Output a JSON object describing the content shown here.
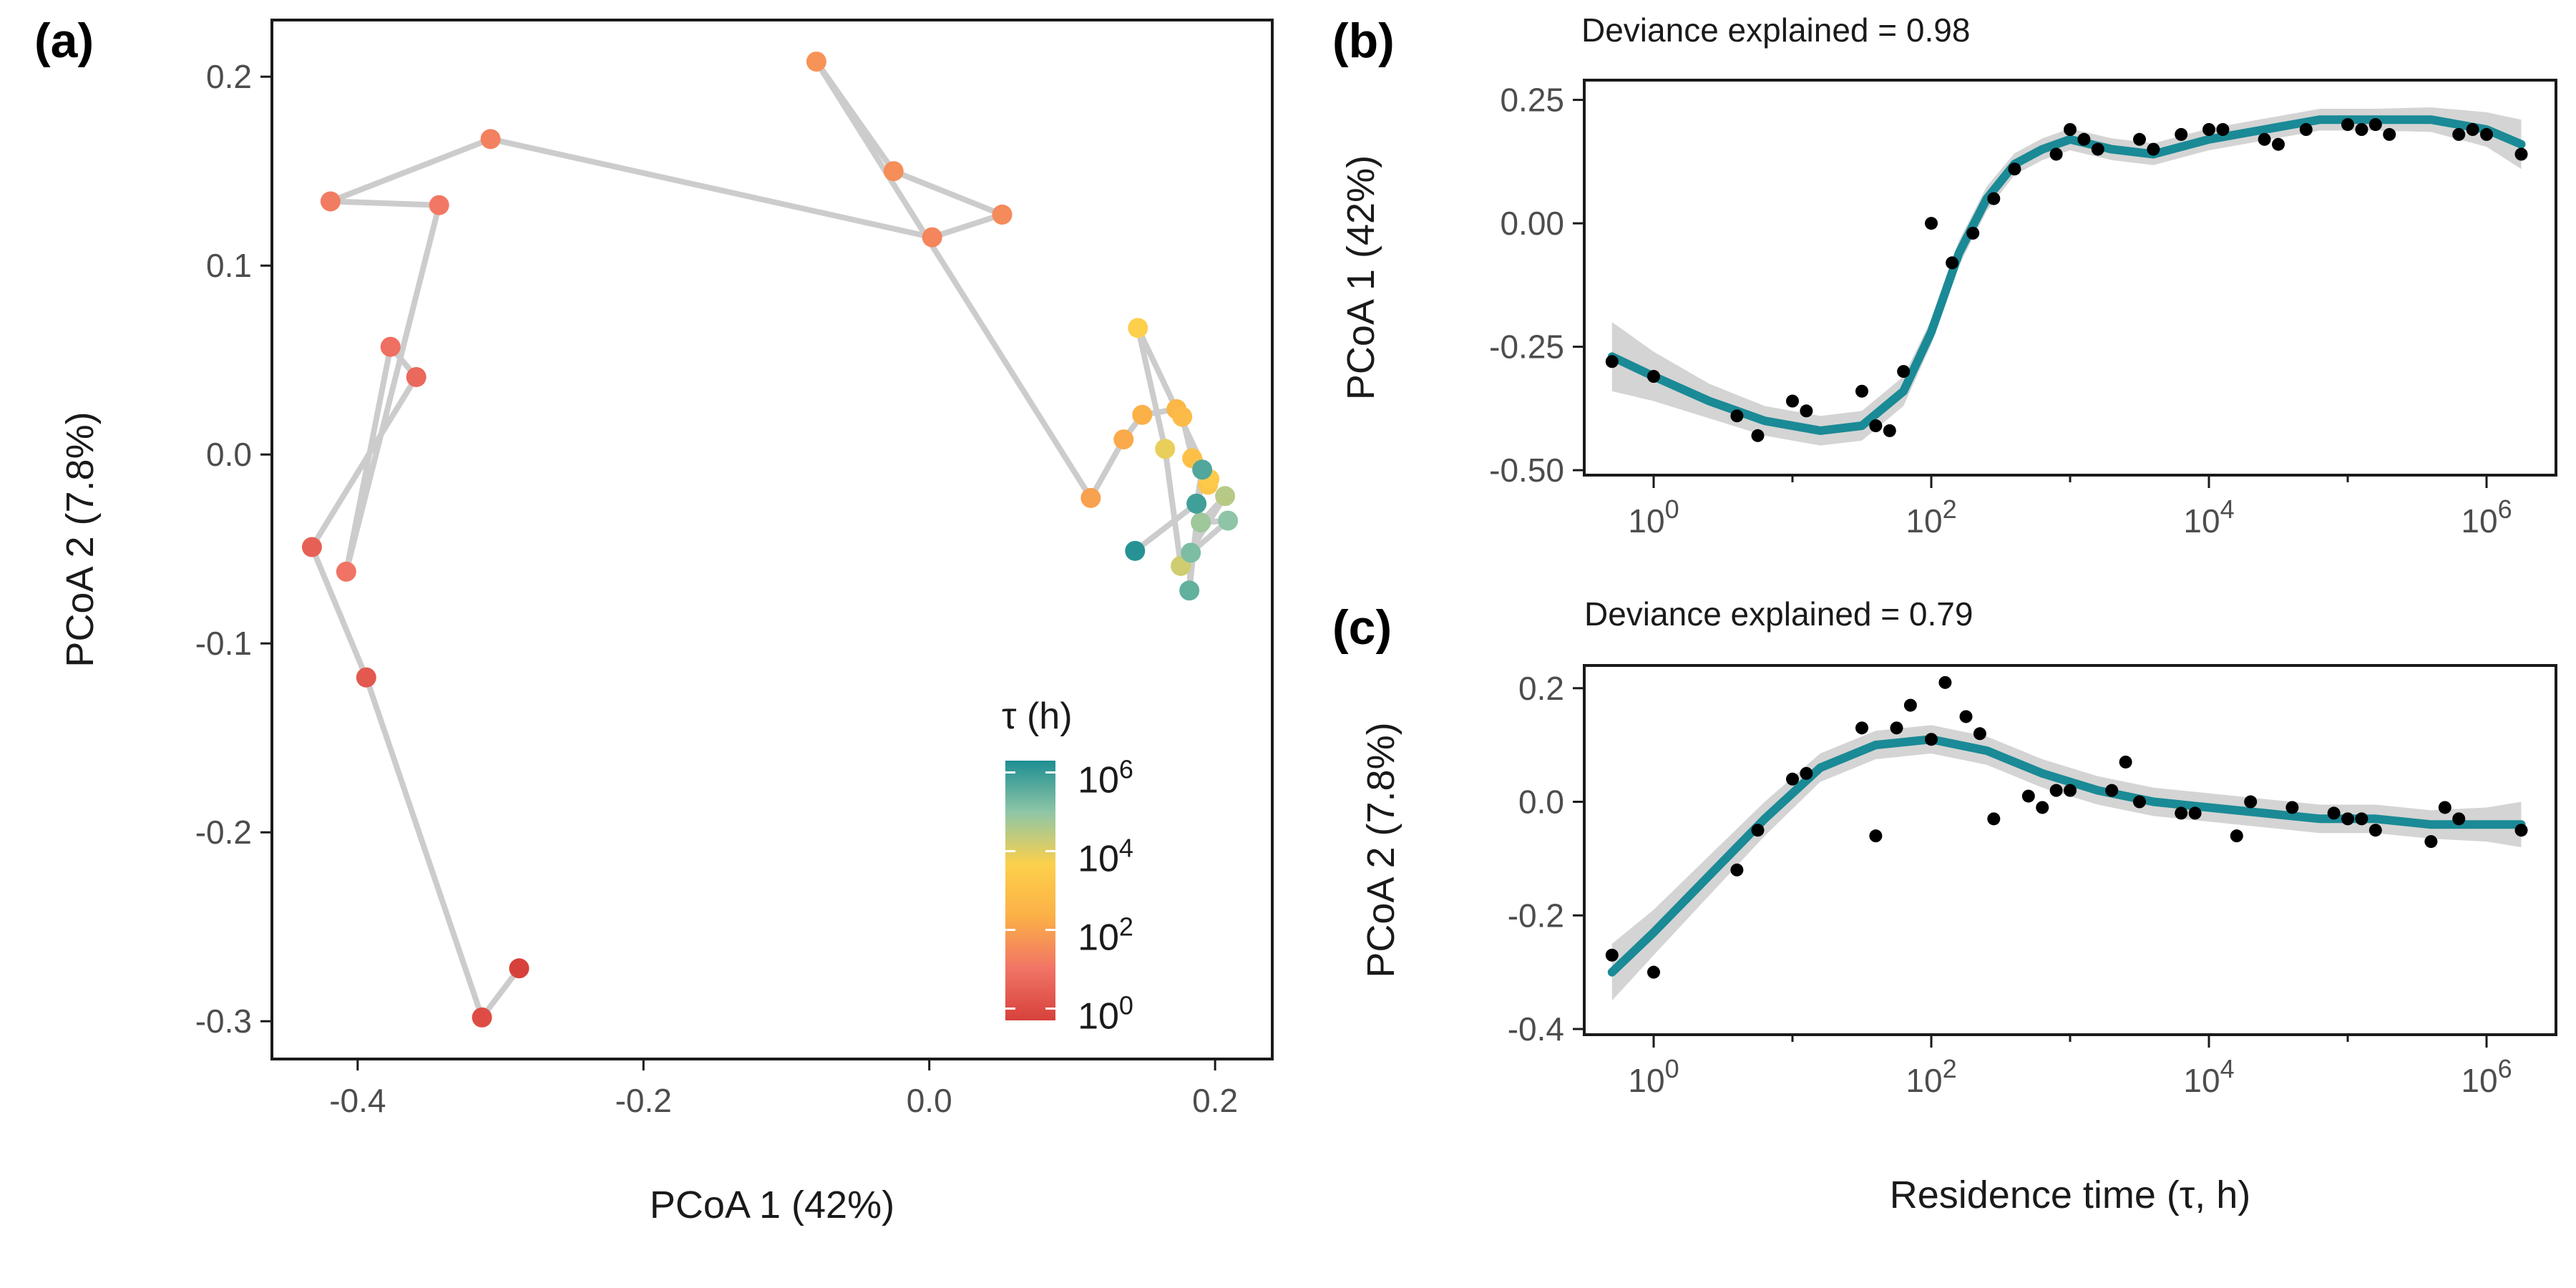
{
  "chart_data": [
    {
      "panel": "(a)",
      "type": "scatter",
      "xlabel": "PCoA 1 (42%)",
      "ylabel": "PCoA 2 (7.8%)",
      "xlim": [
        -0.46,
        0.24
      ],
      "ylim": [
        -0.32,
        0.23
      ],
      "xticks": [
        -0.4,
        -0.2,
        0.0,
        0.2
      ],
      "xtick_labels": [
        "-0.4",
        "-0.2",
        "0.0",
        "0.2"
      ],
      "yticks": [
        -0.3,
        -0.2,
        -0.1,
        0.0,
        0.1,
        0.2
      ],
      "ytick_labels": [
        "-0.3",
        "-0.2",
        "-0.1",
        "0.0",
        "0.1",
        "0.2"
      ],
      "path_color": "#cccccc",
      "legend": {
        "title": "τ (h)",
        "placement": "bottom-right",
        "scale": "log10",
        "range_log10": [
          -0.3,
          6.3
        ],
        "tick_exponents": [
          "0",
          "2",
          "4",
          "6"
        ],
        "tick_base": "10",
        "colors": [
          "#d7413b",
          "#f17466",
          "#fbb047",
          "#fdd04b",
          "#8fc6a6",
          "#1d8e92"
        ]
      },
      "points": [
        {
          "x": -0.287,
          "y": -0.272,
          "tau_log10": -0.3
        },
        {
          "x": -0.313,
          "y": -0.298,
          "tau_log10": 0.0
        },
        {
          "x": -0.394,
          "y": -0.118,
          "tau_log10": 0.3
        },
        {
          "x": -0.432,
          "y": -0.049,
          "tau_log10": 0.5
        },
        {
          "x": -0.359,
          "y": 0.041,
          "tau_log10": 0.7
        },
        {
          "x": -0.377,
          "y": 0.057,
          "tau_log10": 0.9
        },
        {
          "x": -0.408,
          "y": -0.062,
          "tau_log10": 1.0
        },
        {
          "x": -0.343,
          "y": 0.132,
          "tau_log10": 1.1
        },
        {
          "x": -0.419,
          "y": 0.134,
          "tau_log10": 1.2
        },
        {
          "x": -0.307,
          "y": 0.167,
          "tau_log10": 1.3
        },
        {
          "x": 0.002,
          "y": 0.115,
          "tau_log10": 1.4
        },
        {
          "x": 0.051,
          "y": 0.127,
          "tau_log10": 1.5
        },
        {
          "x": -0.025,
          "y": 0.15,
          "tau_log10": 1.6
        },
        {
          "x": -0.079,
          "y": 0.208,
          "tau_log10": 1.7
        },
        {
          "x": 0.113,
          "y": -0.023,
          "tau_log10": 2.0
        },
        {
          "x": 0.136,
          "y": 0.008,
          "tau_log10": 2.2
        },
        {
          "x": 0.149,
          "y": 0.021,
          "tau_log10": 2.4
        },
        {
          "x": 0.173,
          "y": 0.024,
          "tau_log10": 2.6
        },
        {
          "x": 0.177,
          "y": 0.02,
          "tau_log10": 2.8
        },
        {
          "x": 0.184,
          "y": -0.002,
          "tau_log10": 3.0
        },
        {
          "x": 0.195,
          "y": -0.016,
          "tau_log10": 3.2
        },
        {
          "x": 0.196,
          "y": -0.013,
          "tau_log10": 3.4
        },
        {
          "x": 0.146,
          "y": 0.067,
          "tau_log10": 3.6
        },
        {
          "x": 0.165,
          "y": 0.003,
          "tau_log10": 3.9
        },
        {
          "x": 0.176,
          "y": -0.059,
          "tau_log10": 4.2
        },
        {
          "x": 0.207,
          "y": -0.022,
          "tau_log10": 4.5
        },
        {
          "x": 0.19,
          "y": -0.036,
          "tau_log10": 4.8
        },
        {
          "x": 0.209,
          "y": -0.035,
          "tau_log10": 5.0
        },
        {
          "x": 0.183,
          "y": -0.052,
          "tau_log10": 5.2
        },
        {
          "x": 0.182,
          "y": -0.072,
          "tau_log10": 5.5
        },
        {
          "x": 0.191,
          "y": -0.008,
          "tau_log10": 5.7
        },
        {
          "x": 0.187,
          "y": -0.026,
          "tau_log10": 5.9
        },
        {
          "x": 0.144,
          "y": -0.051,
          "tau_log10": 6.2
        }
      ]
    },
    {
      "panel": "(b)",
      "type": "scatter",
      "annotation": "Deviance explained = 0.98",
      "ylabel": "PCoA 1 (42%)",
      "xscale": "log10",
      "xlim_log10": [
        -0.5,
        6.5
      ],
      "ylim": [
        -0.51,
        0.29
      ],
      "xtick_exponents": [
        "0",
        "2",
        "4",
        "6"
      ],
      "xtick_base": "10",
      "yticks": [
        -0.5,
        -0.25,
        0.0,
        0.25
      ],
      "ytick_labels": [
        "-0.50",
        "-0.25",
        "0.00",
        "0.25"
      ],
      "fit_color": "#1a8a96",
      "band_color": "#d4d4d4",
      "points_log10x": [
        [
          -0.3,
          -0.28
        ],
        [
          0.0,
          -0.31
        ],
        [
          0.6,
          -0.39
        ],
        [
          0.75,
          -0.43
        ],
        [
          1.0,
          -0.36
        ],
        [
          1.1,
          -0.38
        ],
        [
          1.5,
          -0.34
        ],
        [
          1.6,
          -0.41
        ],
        [
          1.7,
          -0.42
        ],
        [
          1.8,
          -0.3
        ],
        [
          2.0,
          0.0
        ],
        [
          2.15,
          -0.08
        ],
        [
          2.3,
          -0.02
        ],
        [
          2.45,
          0.05
        ],
        [
          2.6,
          0.11
        ],
        [
          2.9,
          0.14
        ],
        [
          3.0,
          0.19
        ],
        [
          3.1,
          0.17
        ],
        [
          3.2,
          0.15
        ],
        [
          3.5,
          0.17
        ],
        [
          3.6,
          0.15
        ],
        [
          3.8,
          0.18
        ],
        [
          4.0,
          0.19
        ],
        [
          4.1,
          0.19
        ],
        [
          4.4,
          0.17
        ],
        [
          4.5,
          0.16
        ],
        [
          4.7,
          0.19
        ],
        [
          5.0,
          0.2
        ],
        [
          5.1,
          0.19
        ],
        [
          5.2,
          0.2
        ],
        [
          5.3,
          0.18
        ],
        [
          5.8,
          0.18
        ],
        [
          5.9,
          0.19
        ],
        [
          6.0,
          0.18
        ],
        [
          6.25,
          0.14
        ]
      ],
      "fit_log10x": [
        [
          -0.3,
          -0.27
        ],
        [
          0.0,
          -0.31
        ],
        [
          0.4,
          -0.36
        ],
        [
          0.8,
          -0.4
        ],
        [
          1.2,
          -0.42
        ],
        [
          1.5,
          -0.41
        ],
        [
          1.8,
          -0.34
        ],
        [
          2.0,
          -0.22
        ],
        [
          2.2,
          -0.06
        ],
        [
          2.4,
          0.05
        ],
        [
          2.6,
          0.12
        ],
        [
          2.8,
          0.15
        ],
        [
          3.0,
          0.17
        ],
        [
          3.3,
          0.15
        ],
        [
          3.6,
          0.14
        ],
        [
          4.0,
          0.17
        ],
        [
          4.4,
          0.19
        ],
        [
          4.8,
          0.21
        ],
        [
          5.2,
          0.21
        ],
        [
          5.6,
          0.21
        ],
        [
          6.0,
          0.19
        ],
        [
          6.25,
          0.16
        ]
      ],
      "band_halfwidth": [
        0.07,
        0.05,
        0.035,
        0.03,
        0.03,
        0.03,
        0.03,
        0.025,
        0.025,
        0.025,
        0.022,
        0.022,
        0.022,
        0.022,
        0.022,
        0.022,
        0.022,
        0.022,
        0.022,
        0.025,
        0.035,
        0.05
      ]
    },
    {
      "panel": "(c)",
      "type": "scatter",
      "annotation": "Deviance explained = 0.79",
      "xlabel": "Residence time (τ, h)",
      "ylabel": "PCoA 2 (7.8%)",
      "xscale": "log10",
      "xlim_log10": [
        -0.5,
        6.5
      ],
      "ylim": [
        -0.41,
        0.24
      ],
      "xtick_exponents": [
        "0",
        "2",
        "4",
        "6"
      ],
      "xtick_base": "10",
      "yticks": [
        -0.4,
        -0.2,
        0.0,
        0.2
      ],
      "ytick_labels": [
        "-0.4",
        "-0.2",
        "0.0",
        "0.2"
      ],
      "fit_color": "#1a8a96",
      "band_color": "#d4d4d4",
      "points_log10x": [
        [
          -0.3,
          -0.27
        ],
        [
          0.0,
          -0.3
        ],
        [
          0.6,
          -0.12
        ],
        [
          0.75,
          -0.05
        ],
        [
          1.0,
          0.04
        ],
        [
          1.1,
          0.05
        ],
        [
          1.5,
          0.13
        ],
        [
          1.6,
          -0.06
        ],
        [
          1.75,
          0.13
        ],
        [
          1.85,
          0.17
        ],
        [
          2.0,
          0.11
        ],
        [
          2.1,
          0.21
        ],
        [
          2.25,
          0.15
        ],
        [
          2.35,
          0.12
        ],
        [
          2.45,
          -0.03
        ],
        [
          2.7,
          0.01
        ],
        [
          2.8,
          -0.01
        ],
        [
          2.9,
          0.02
        ],
        [
          3.0,
          0.02
        ],
        [
          3.3,
          0.02
        ],
        [
          3.4,
          0.07
        ],
        [
          3.5,
          0.0
        ],
        [
          3.8,
          -0.02
        ],
        [
          3.9,
          -0.02
        ],
        [
          4.2,
          -0.06
        ],
        [
          4.3,
          0.0
        ],
        [
          4.6,
          -0.01
        ],
        [
          4.9,
          -0.02
        ],
        [
          5.0,
          -0.03
        ],
        [
          5.1,
          -0.03
        ],
        [
          5.2,
          -0.05
        ],
        [
          5.6,
          -0.07
        ],
        [
          5.7,
          -0.01
        ],
        [
          5.8,
          -0.03
        ],
        [
          6.25,
          -0.05
        ]
      ],
      "fit_log10x": [
        [
          -0.3,
          -0.3
        ],
        [
          0.0,
          -0.23
        ],
        [
          0.4,
          -0.13
        ],
        [
          0.8,
          -0.03
        ],
        [
          1.2,
          0.06
        ],
        [
          1.6,
          0.1
        ],
        [
          2.0,
          0.11
        ],
        [
          2.4,
          0.09
        ],
        [
          2.8,
          0.05
        ],
        [
          3.2,
          0.02
        ],
        [
          3.6,
          0.0
        ],
        [
          4.0,
          -0.01
        ],
        [
          4.4,
          -0.02
        ],
        [
          4.8,
          -0.03
        ],
        [
          5.2,
          -0.03
        ],
        [
          5.6,
          -0.04
        ],
        [
          6.0,
          -0.04
        ],
        [
          6.25,
          -0.04
        ]
      ],
      "band_halfwidth": [
        0.05,
        0.04,
        0.035,
        0.03,
        0.025,
        0.025,
        0.025,
        0.025,
        0.025,
        0.025,
        0.025,
        0.025,
        0.025,
        0.025,
        0.025,
        0.025,
        0.03,
        0.04
      ]
    }
  ]
}
